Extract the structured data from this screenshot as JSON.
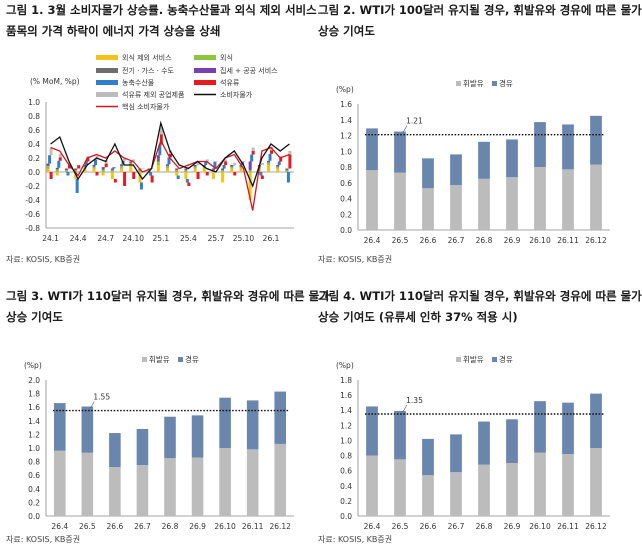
{
  "colors": {
    "gasoline": "#bcbcbc",
    "diesel": "#6a86ad",
    "bar_red": "#e8191f",
    "bar_blue": "#2f7fcc",
    "bar_yellow": "#f3c31a",
    "bar_green": "#8cc63f",
    "bar_purple": "#7a3fb0",
    "bar_darkgray": "#6d6d6d",
    "line_black": "#111111",
    "line_red": "#d8141a"
  },
  "source": "자료: KOSIS, KB증권",
  "chart_data": [
    {
      "id": "fig1",
      "type": "bar",
      "title_line1": "그림 1. 3월 소비자물가 상승률. 농축수산물과 외식 제외 서비스",
      "title_line2": "품목의 가격 하락이 에너지 가격 상승을 상쇄",
      "ylabel": "(% MoM, %p)",
      "ylim": [
        -0.8,
        1.0
      ],
      "yticks": [
        "1.0",
        "0.8",
        "0.6",
        "0.4",
        "0.2",
        "0.0",
        "-0.2",
        "-0.4",
        "-0.6",
        "-0.8"
      ],
      "tick_labels": [
        "24.1",
        "24.4",
        "24.7",
        "24.10",
        "25.1",
        "25.4",
        "25.7",
        "25.10",
        "26.1"
      ],
      "legend": {
        "services_ex_dining": "외식 제외 서비스",
        "dining": "외식",
        "utilities": "전기 · 가스 · 수도",
        "housing": "집세 + 공공 서비스",
        "agri": "농축수산물",
        "oil": "석유류",
        "goods_ex_oil": "석유류 제외 공업제품",
        "cpi": "소비자물가",
        "core": "핵심 소비자물가"
      },
      "months": 27,
      "series": {
        "services_ex_dining": [
          0.05,
          -0.05,
          0.0,
          -0.1,
          0.05,
          0.05,
          -0.05,
          -0.1,
          0.05,
          0.1,
          -0.15,
          0.0,
          0.1,
          0.05,
          -0.05,
          -0.1,
          0.05,
          0.05,
          -0.1,
          -0.15,
          0.05,
          0.05,
          -0.4,
          0.05,
          0.1,
          0.05,
          0.0
        ],
        "dining": [
          0.04,
          0.04,
          0.03,
          0.03,
          0.03,
          0.03,
          0.03,
          0.03,
          0.04,
          0.03,
          0.03,
          0.03,
          0.05,
          0.04,
          0.03,
          0.03,
          0.03,
          0.03,
          0.03,
          0.03,
          0.03,
          0.03,
          0.03,
          0.03,
          0.04,
          0.03,
          0.03
        ],
        "utilities": [
          0.0,
          0.0,
          0.0,
          0.0,
          0.0,
          0.0,
          0.02,
          0.0,
          0.0,
          0.0,
          0.0,
          0.0,
          0.05,
          0.0,
          0.0,
          0.0,
          0.0,
          0.0,
          0.0,
          0.0,
          0.0,
          0.0,
          0.0,
          0.0,
          0.0,
          0.0,
          0.0
        ],
        "housing": [
          0.03,
          0.02,
          0.02,
          0.02,
          0.02,
          0.02,
          0.02,
          0.02,
          0.02,
          0.02,
          0.02,
          0.02,
          0.04,
          0.02,
          0.02,
          0.02,
          0.02,
          0.02,
          0.02,
          0.02,
          0.02,
          0.02,
          0.12,
          0.02,
          0.02,
          0.02,
          0.02
        ],
        "agri": [
          0.12,
          0.1,
          -0.05,
          -0.2,
          0.05,
          0.08,
          0.0,
          0.02,
          0.05,
          0.0,
          -0.1,
          -0.05,
          0.15,
          0.1,
          -0.05,
          -0.05,
          0.0,
          0.05,
          0.1,
          0.05,
          0.0,
          0.05,
          0.1,
          -0.05,
          0.1,
          0.05,
          -0.15
        ],
        "oil": [
          -0.1,
          0.05,
          0.05,
          0.05,
          0.05,
          -0.05,
          0.05,
          -0.05,
          -0.2,
          -0.1,
          0.0,
          -0.1,
          0.15,
          0.05,
          0.0,
          -0.05,
          -0.1,
          -0.05,
          0.0,
          0.05,
          -0.05,
          0.0,
          0.05,
          -0.05,
          0.05,
          0.05,
          0.2
        ],
        "goods_ex_oil": [
          0.1,
          0.05,
          0.03,
          0.0,
          0.03,
          0.05,
          0.05,
          0.0,
          0.03,
          0.03,
          0.0,
          0.0,
          0.1,
          0.05,
          0.0,
          0.03,
          0.03,
          0.03,
          0.0,
          0.03,
          0.03,
          0.0,
          0.05,
          0.03,
          0.05,
          0.03,
          0.05
        ],
        "cpi": [
          0.4,
          0.5,
          0.15,
          -0.1,
          0.1,
          0.2,
          0.15,
          0.4,
          0.1,
          0.1,
          -0.1,
          0.05,
          0.7,
          0.3,
          0.1,
          0.05,
          0.15,
          0.05,
          0.0,
          0.2,
          0.3,
          0.1,
          -0.2,
          0.2,
          0.4,
          0.3,
          0.4
        ],
        "core": [
          0.35,
          0.3,
          0.1,
          -0.05,
          0.2,
          0.25,
          0.2,
          0.3,
          0.2,
          0.15,
          0.0,
          0.05,
          0.45,
          0.2,
          0.05,
          0.1,
          0.15,
          0.15,
          0.05,
          0.2,
          0.25,
          0.05,
          -0.55,
          0.3,
          0.35,
          0.2,
          0.25
        ]
      }
    },
    {
      "id": "fig2",
      "type": "stacked_bar",
      "title_line1": "그림 2. WTI가 100달러 유지될 경우, 휘발유와 경유에 따른 물가",
      "title_line2": "상승 기여도",
      "ylabel": "(%p)",
      "ylim": [
        0,
        1.6
      ],
      "yticks": [
        "1.6",
        "1.4",
        "1.2",
        "1.0",
        "0.8",
        "0.6",
        "0.4",
        "0.2",
        "0.0"
      ],
      "categories": [
        "26.4",
        "26.5",
        "26.6",
        "26.7",
        "26.8",
        "26.9",
        "26.10",
        "26.11",
        "26.12"
      ],
      "legend_gasoline": "휘발유",
      "legend_diesel": "경유",
      "gasoline": [
        0.76,
        0.73,
        0.53,
        0.57,
        0.65,
        0.67,
        0.8,
        0.77,
        0.83
      ],
      "diesel": [
        0.53,
        0.52,
        0.38,
        0.39,
        0.47,
        0.48,
        0.57,
        0.57,
        0.62
      ],
      "reference_value": 1.21,
      "reference_label": "1.21"
    },
    {
      "id": "fig3",
      "type": "stacked_bar",
      "title_line1": "그림 3. WTI가 110달러 유지될 경우, 휘발유와 경유에 따른 물가",
      "title_line2": "상승 기여도",
      "ylabel": "(%p)",
      "ylim": [
        0,
        2.0
      ],
      "yticks": [
        "2.0",
        "1.8",
        "1.6",
        "1.4",
        "1.2",
        "1.0",
        "0.8",
        "0.6",
        "0.4",
        "0.2",
        "0.0"
      ],
      "categories": [
        "26.4",
        "26.5",
        "26.6",
        "26.7",
        "26.8",
        "26.9",
        "26.10",
        "26.11",
        "26.12"
      ],
      "legend_gasoline": "휘발유",
      "legend_diesel": "경유",
      "gasoline": [
        0.96,
        0.93,
        0.72,
        0.75,
        0.85,
        0.86,
        1.0,
        0.98,
        1.06
      ],
      "diesel": [
        0.7,
        0.68,
        0.5,
        0.53,
        0.61,
        0.62,
        0.74,
        0.72,
        0.77
      ],
      "reference_value": 1.55,
      "reference_label": "1.55"
    },
    {
      "id": "fig4",
      "type": "stacked_bar",
      "title_line1": "그림 4. WTI가 110달러 유지될 경우, 휘발유와 경유에 따른 물가",
      "title_line2": "상승 기여도 (유류세 인하 37% 적용 시)",
      "ylabel": "(%p)",
      "ylim": [
        0,
        1.8
      ],
      "yticks": [
        "1.8",
        "1.6",
        "1.4",
        "1.2",
        "1.0",
        "0.8",
        "0.6",
        "0.4",
        "0.2",
        "0.0"
      ],
      "categories": [
        "26.4",
        "26.5",
        "26.6",
        "26.7",
        "26.8",
        "26.9",
        "26.10",
        "26.11",
        "26.12"
      ],
      "legend_gasoline": "휘발유",
      "legend_diesel": "경유",
      "gasoline": [
        0.8,
        0.75,
        0.54,
        0.58,
        0.68,
        0.7,
        0.84,
        0.82,
        0.9
      ],
      "diesel": [
        0.65,
        0.64,
        0.48,
        0.5,
        0.57,
        0.58,
        0.68,
        0.68,
        0.72
      ],
      "reference_value": 1.35,
      "reference_label": "1.35"
    }
  ]
}
